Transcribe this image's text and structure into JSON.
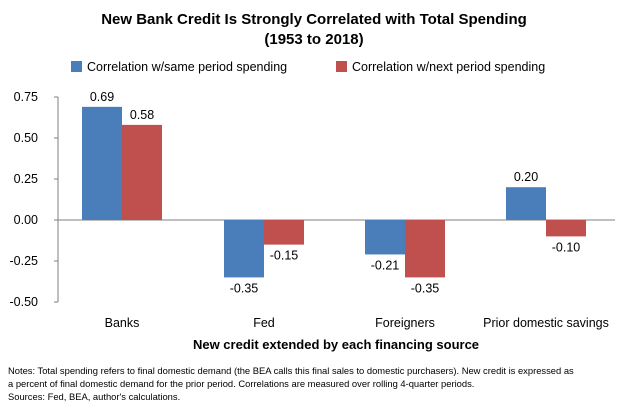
{
  "chart_data": {
    "type": "bar",
    "title": "New Bank Credit Is Strongly Correlated with Total Spending",
    "subtitle": "(1953 to 2018)",
    "xlabel": "New credit extended by each financing source",
    "ylabel": "",
    "ylim": [
      -0.5,
      0.75
    ],
    "yticks": [
      "0.75",
      "0.50",
      "0.25",
      "0.00",
      "-0.25",
      "-0.50"
    ],
    "ytick_values": [
      0.75,
      0.5,
      0.25,
      0.0,
      -0.25,
      -0.5
    ],
    "categories": [
      "Banks",
      "Fed",
      "Foreigners",
      "Prior domestic savings"
    ],
    "series": [
      {
        "name": "Correlation w/same period spending",
        "color": "#4a7ebb",
        "values": [
          0.69,
          -0.35,
          -0.21,
          0.2
        ],
        "labels": [
          "0.69",
          "-0.35",
          "-0.21",
          "0.20"
        ]
      },
      {
        "name": "Correlation w/next period spending",
        "color": "#c0504d",
        "values": [
          0.58,
          -0.15,
          -0.35,
          -0.1
        ],
        "labels": [
          "0.58",
          "-0.15",
          "-0.35",
          "-0.10"
        ]
      }
    ],
    "grid": false,
    "legend_position": "top"
  },
  "notes": [
    "Notes: Total spending refers to final domestic demand (the BEA calls this final sales to domestic purchasers). New credit is expressed as",
    "a percent of final domestic demand for the prior period. Correlations are measured over rolling 4-quarter periods.",
    "Sources: Fed, BEA, author's calculations."
  ]
}
